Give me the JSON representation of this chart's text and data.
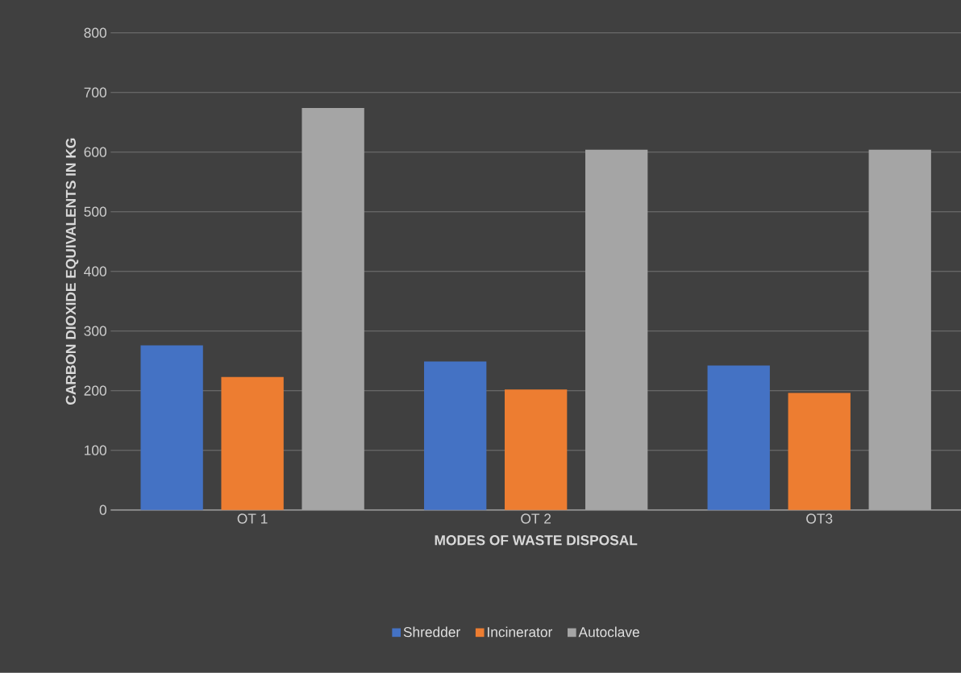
{
  "chart_data": {
    "type": "bar",
    "xlabel": "MODES OF WASTE DISPOSAL",
    "ylabel": "CARBON DIOXIDE EQUIVALENTS IN KG",
    "categories": [
      "OT 1",
      "OT 2",
      "OT3"
    ],
    "series": [
      {
        "name": "Shredder",
        "color": "#4472c4",
        "values": [
          276,
          249,
          242
        ]
      },
      {
        "name": "Incinerator",
        "color": "#ed7d31",
        "values": [
          223,
          202,
          196
        ]
      },
      {
        "name": "Autoclave",
        "color": "#a5a5a5",
        "values": [
          674,
          604,
          604
        ]
      }
    ],
    "ylim": [
      0,
      800
    ],
    "yticks": [
      0,
      100,
      200,
      300,
      400,
      500,
      600,
      700,
      800
    ],
    "grid": "y",
    "legend": "bottom"
  }
}
